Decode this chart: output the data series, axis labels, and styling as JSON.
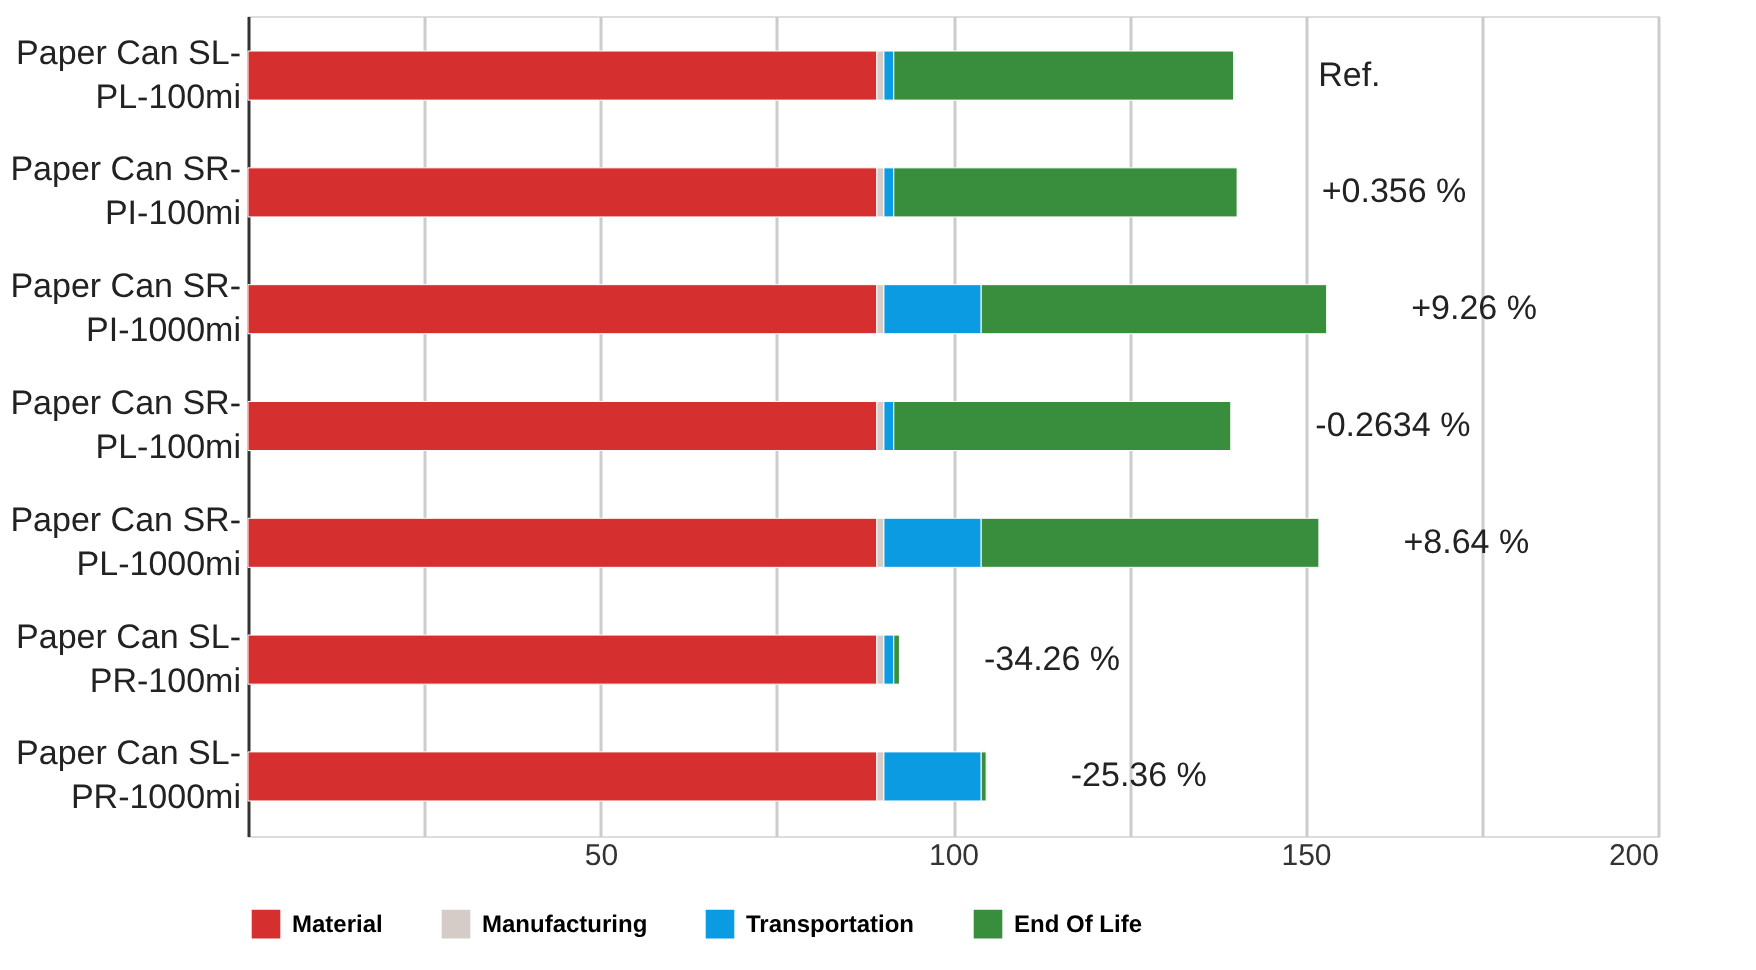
{
  "chart_data": {
    "type": "bar",
    "orientation": "horizontal",
    "stacked": true,
    "categories": [
      "Paper Can SL-PL-100mi",
      "Paper Can SR-PI-100mi",
      "Paper Can SR-PI-1000mi",
      "Paper Can SR-PL-100mi",
      "Paper Can SR-PL-1000mi",
      "Paper Can SL-PR-100mi",
      "Paper Can SL-PR-1000mi"
    ],
    "series": [
      {
        "name": "Material",
        "color": "#d62f2f",
        "values": [
          89.2,
          89.2,
          89.2,
          89.2,
          89.2,
          89.2,
          89.2
        ]
      },
      {
        "name": "Manufacturing",
        "color": "#d5ccc8",
        "values": [
          1.0,
          1.0,
          1.0,
          1.0,
          1.0,
          1.0,
          1.0
        ]
      },
      {
        "name": "Transportation",
        "color": "#0b9be3",
        "values": [
          1.4,
          1.4,
          13.8,
          1.4,
          13.8,
          1.4,
          13.8
        ]
      },
      {
        "name": "End Of Life",
        "color": "#388e3c",
        "values": [
          48.2,
          48.7,
          49.0,
          47.8,
          47.9,
          0.8,
          0.7
        ]
      }
    ],
    "xlim": [
      0,
      200
    ],
    "xticks": [
      {
        "value": 25,
        "label": null
      },
      50,
      {
        "value": 75,
        "label": null
      },
      100,
      {
        "value": 125,
        "label": null
      },
      150,
      {
        "value": 175,
        "label": null
      },
      200
    ],
    "grid": "x",
    "legend": "bottom",
    "annotations": [
      "Ref.",
      "+0.356 %",
      "+9.26 %",
      "-0.2634 %",
      "+8.64 %",
      "-34.26 %",
      "-25.36 %"
    ]
  }
}
